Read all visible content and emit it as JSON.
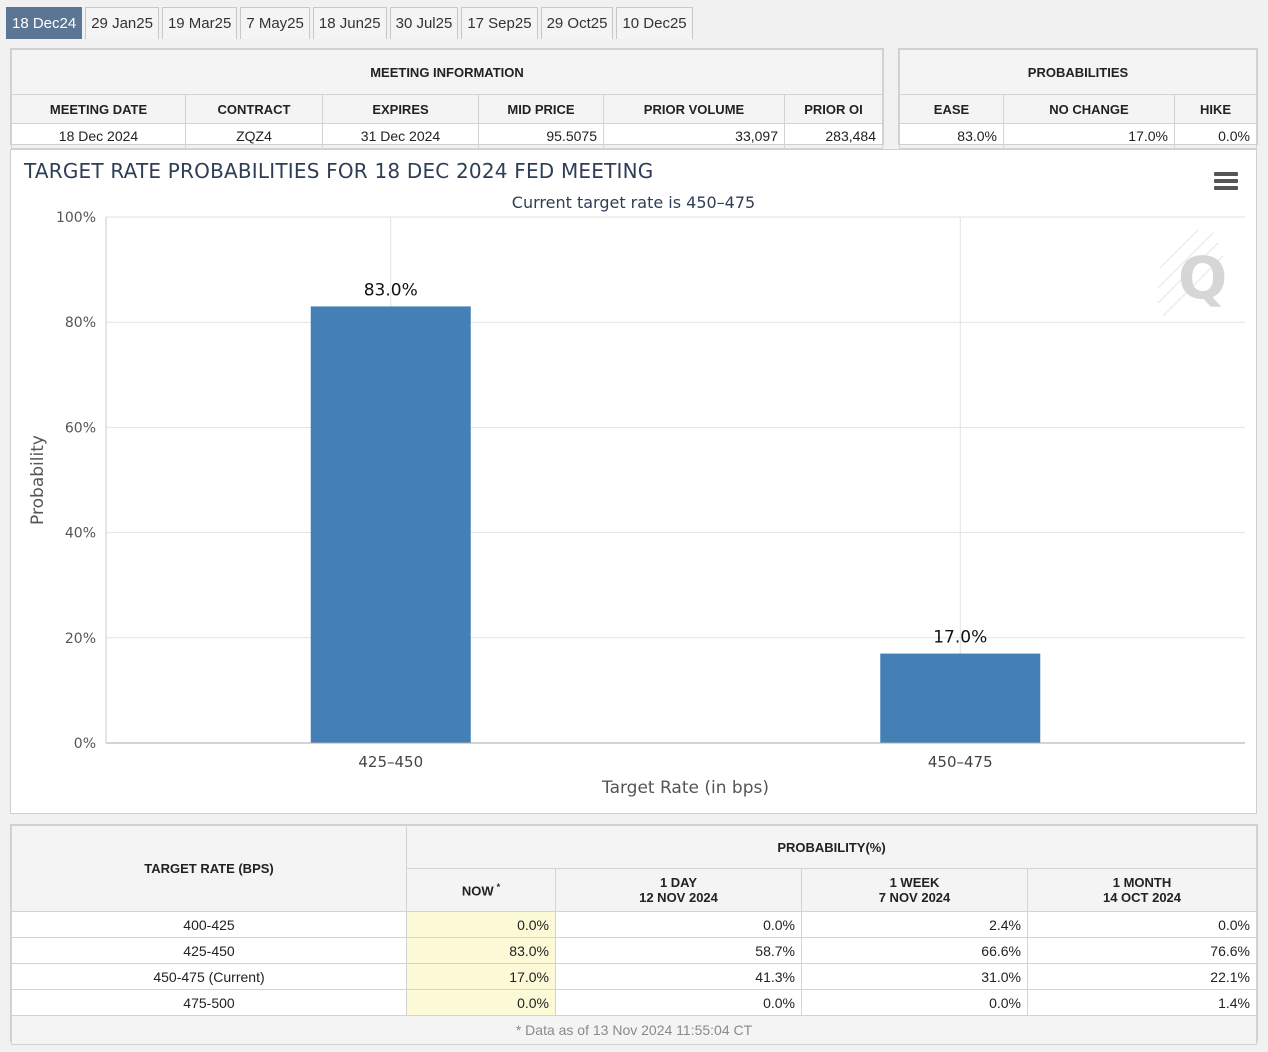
{
  "tabs": [
    "18 Dec24",
    "29 Jan25",
    "19 Mar25",
    "7 May25",
    "18 Jun25",
    "30 Jul25",
    "17 Sep25",
    "29 Oct25",
    "10 Dec25"
  ],
  "active_tab": 0,
  "meeting_info": {
    "title": "MEETING INFORMATION",
    "headers": [
      "MEETING DATE",
      "CONTRACT",
      "EXPIRES",
      "MID PRICE",
      "PRIOR VOLUME",
      "PRIOR OI"
    ],
    "values": [
      "18 Dec 2024",
      "ZQZ4",
      "31 Dec 2024",
      "95.5075",
      "33,097",
      "283,484"
    ]
  },
  "probabilities": {
    "title": "PROBABILITIES",
    "headers": [
      "EASE",
      "NO CHANGE",
      "HIKE"
    ],
    "values": [
      "83.0%",
      "17.0%",
      "0.0%"
    ]
  },
  "chart": {
    "menu_icon": "hamburger-menu-icon",
    "logo_icon": "q-logo-icon"
  },
  "chart_data": {
    "type": "bar",
    "title": "TARGET RATE PROBABILITIES FOR 18 DEC 2024 FED MEETING",
    "subtitle": "Current target rate is 450–475",
    "categories": [
      "425–450",
      "450–475"
    ],
    "values": [
      83.0,
      17.0
    ],
    "data_labels": [
      "83.0%",
      "17.0%"
    ],
    "xlabel": "Target Rate (in bps)",
    "ylabel": "Probability",
    "ylim": [
      0,
      100
    ],
    "yticks": [
      "0%",
      "20%",
      "40%",
      "60%",
      "80%",
      "100%"
    ],
    "bar_color": "#4480b6",
    "grid": true
  },
  "prob_table": {
    "rate_header": "TARGET RATE (BPS)",
    "prob_header": "PROBABILITY(%)",
    "columns": [
      {
        "line1": "NOW",
        "line2": "",
        "mark": "*"
      },
      {
        "line1": "1 DAY",
        "line2": "12 NOV 2024",
        "mark": ""
      },
      {
        "line1": "1 WEEK",
        "line2": "7 NOV 2024",
        "mark": ""
      },
      {
        "line1": "1 MONTH",
        "line2": "14 OCT 2024",
        "mark": ""
      }
    ],
    "rows": [
      {
        "rate": "400-425",
        "vals": [
          "0.0%",
          "0.0%",
          "2.4%",
          "0.0%"
        ]
      },
      {
        "rate": "425-450",
        "vals": [
          "83.0%",
          "58.7%",
          "66.6%",
          "76.6%"
        ]
      },
      {
        "rate": "450-475 (Current)",
        "vals": [
          "17.0%",
          "41.3%",
          "31.0%",
          "22.1%"
        ]
      },
      {
        "rate": "475-500",
        "vals": [
          "0.0%",
          "0.0%",
          "0.0%",
          "1.4%"
        ]
      }
    ],
    "footnote": "* Data as of 13 Nov 2024 11:55:04 CT"
  }
}
